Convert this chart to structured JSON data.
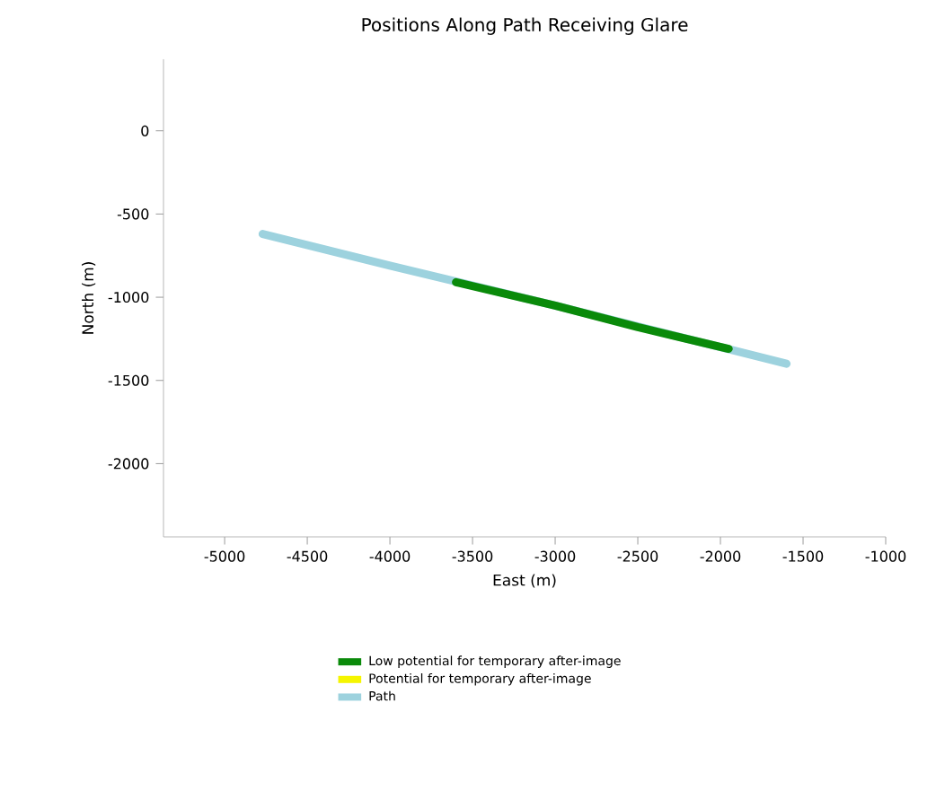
{
  "chart_data": {
    "type": "line",
    "title": "Positions Along Path Receiving Glare",
    "xlabel": "East (m)",
    "ylabel": "North (m)",
    "xlim": [
      -5370,
      -1000
    ],
    "ylim": [
      -2440,
      430
    ],
    "xticks": [
      -5000,
      -4500,
      -4000,
      -3500,
      -3000,
      -2500,
      -2000,
      -1500,
      -1000
    ],
    "yticks": [
      -2000,
      -1500,
      -1000,
      -500,
      0
    ],
    "legend": "bottom",
    "grid": false,
    "marker": "none",
    "line_style": "solid",
    "series": [
      {
        "name": "Low potential for temporary after-image",
        "color": "#0a8a0a",
        "x": [
          -3600,
          -3000,
          -2500,
          -1950
        ],
        "values": [
          -910,
          -1050,
          -1180,
          -1310
        ]
      },
      {
        "name": "Potential for temporary after-image",
        "color": "#f5f500"
      },
      {
        "name": "Path",
        "color": "#9dd2de",
        "x": [
          -4770,
          -4000,
          -3000,
          -2000,
          -1600
        ],
        "values": [
          -620,
          -810,
          -1050,
          -1300,
          -1400
        ]
      }
    ]
  }
}
